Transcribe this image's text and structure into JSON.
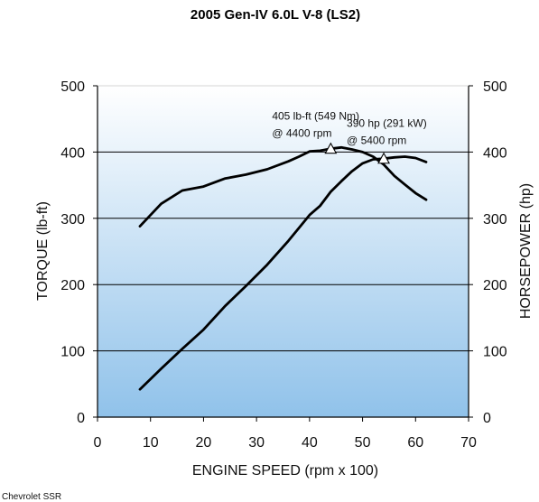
{
  "chart_data": {
    "type": "line",
    "title": "2005 Gen-IV 6.0L V-8 (LS2)",
    "xlabel": "ENGINE SPEED (rpm x 100)",
    "ylabel_left": "TORQUE (lb-ft)",
    "ylabel_right": "HORSEPOWER (hp)",
    "xlim": [
      0,
      70
    ],
    "ylim": [
      0,
      500
    ],
    "x_ticks": [
      "0",
      "10",
      "20",
      "30",
      "40",
      "50",
      "60",
      "70"
    ],
    "y_ticks": [
      "0",
      "100",
      "200",
      "300",
      "400",
      "500"
    ],
    "grid": "horizontal",
    "background_gradient": [
      "#ffffff",
      "#90c2ea"
    ],
    "line_color": "#000000",
    "series": [
      {
        "x": [
          8,
          12,
          16,
          20,
          24,
          28,
          32,
          36,
          38,
          40,
          42,
          44,
          46,
          48,
          50,
          52,
          54,
          56,
          58,
          60,
          62
        ],
        "values": [
          288,
          322,
          342,
          348,
          360,
          366,
          374,
          386,
          393,
          401,
          402,
          405,
          407,
          404,
          400,
          393,
          381,
          364,
          351,
          338,
          328
        ]
      },
      {
        "x": [
          8,
          12,
          16,
          20,
          24,
          28,
          32,
          36,
          40,
          42,
          44,
          46,
          48,
          50,
          52,
          54,
          56,
          58,
          60,
          62
        ],
        "values": [
          42,
          73,
          103,
          132,
          167,
          198,
          230,
          266,
          305,
          319,
          340,
          356,
          371,
          383,
          389,
          390,
          392,
          393,
          391,
          385
        ]
      }
    ],
    "annotations": [
      {
        "lines": [
          "405 lb-ft (549 Nm)",
          "@ 4400 rpm"
        ],
        "x": 44,
        "y": 405
      },
      {
        "lines": [
          "390 hp (291 kW)",
          "@ 5400 rpm"
        ],
        "x": 54,
        "y": 390
      }
    ],
    "credit": "Chevrolet SSR"
  }
}
